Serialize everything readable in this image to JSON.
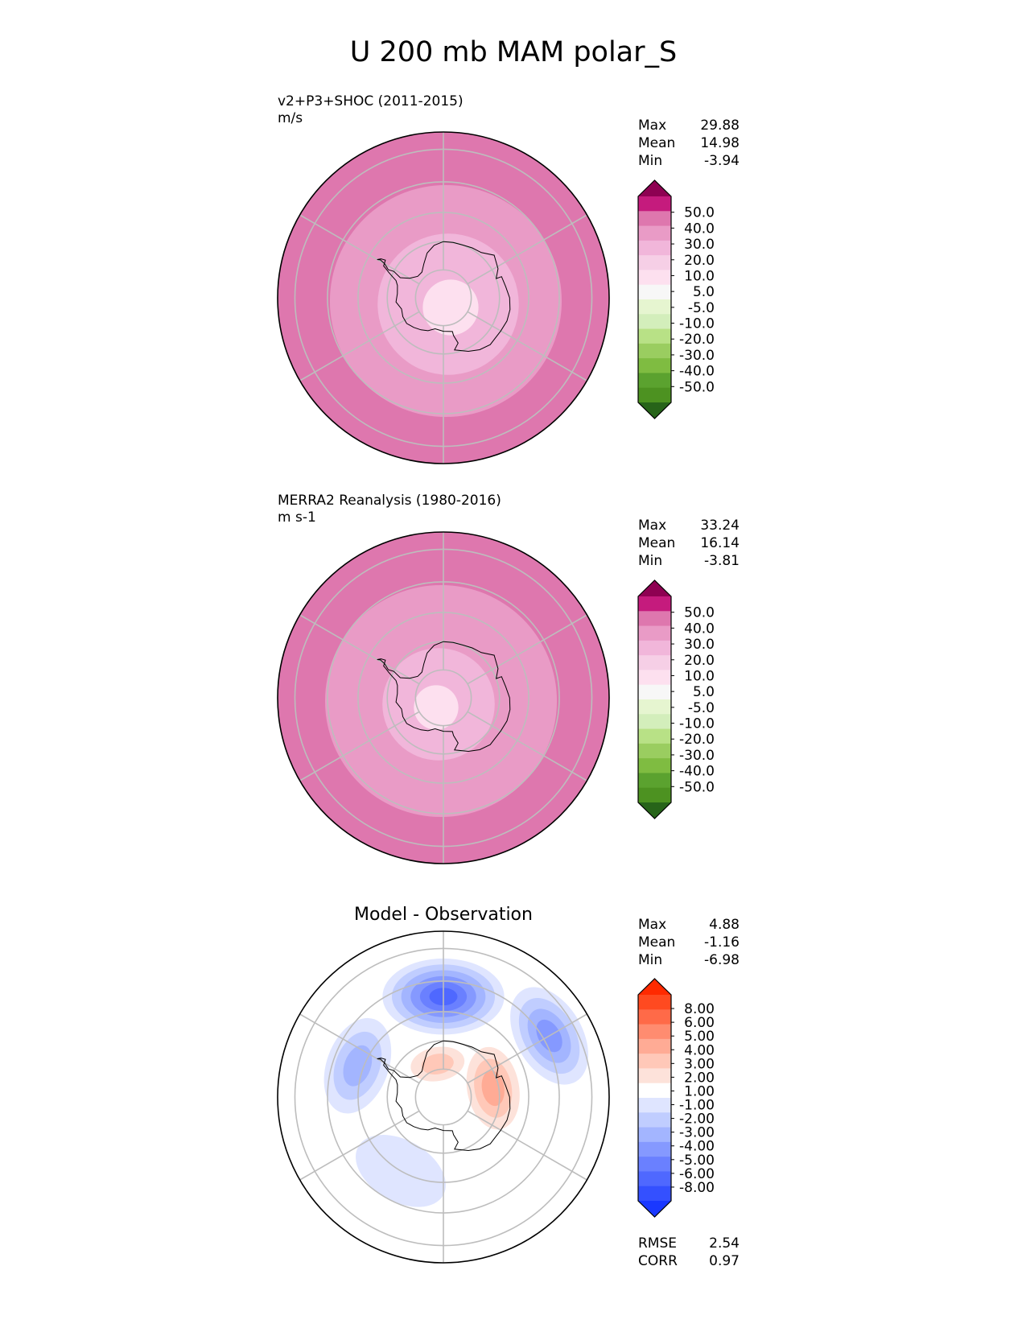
{
  "figure_title": "U 200 mb MAM polar_S",
  "colors": {
    "test_ref_cmap": [
      "#8e0152",
      "#c51b7d",
      "#de77ae",
      "#e99bc6",
      "#f1b6da",
      "#f6cfe6",
      "#fde0ef",
      "#f7f7f7",
      "#e6f5d0",
      "#d3eebb",
      "#b8e186",
      "#9acd60",
      "#7fbc41",
      "#5ba22f",
      "#4d9221",
      "#276419"
    ],
    "diff_cmap": [
      "#ff2a00",
      "#ff4a20",
      "#ff6a48",
      "#ff8c70",
      "#ffab95",
      "#ffc8b8",
      "#fde2da",
      "#ffffff",
      "#dfe5ff",
      "#c0cdff",
      "#a3b5ff",
      "#8599ff",
      "#6a80ff",
      "#4f68ff",
      "#3450ff",
      "#1a38ff"
    ],
    "grid": "#bdbdbd",
    "coast": "#000000"
  },
  "chart_data": [
    {
      "type": "contourf_polar",
      "panel": "test",
      "title": "v2+P3+SHOC (2011-2015)",
      "units": "m/s",
      "stats": [
        {
          "label": "Max",
          "value": "29.88"
        },
        {
          "label": "Mean",
          "value": "14.98"
        },
        {
          "label": "Min",
          "value": "-3.94"
        }
      ],
      "levels": [
        "50.0",
        "40.0",
        "30.0",
        "20.0",
        "10.0",
        "5.0",
        "-5.0",
        "-10.0",
        "-20.0",
        "-30.0",
        "-40.0",
        "-50.0"
      ],
      "field_rings": [
        {
          "band": "20-30",
          "lat_from": -50,
          "lat_to": -40,
          "color_index": 3
        },
        {
          "band": "10-20",
          "lat_from": -65,
          "lat_to": -50,
          "color_index": 4
        },
        {
          "band": "5-10",
          "lat_from": -80,
          "lat_to": -65,
          "color_index": 6
        },
        {
          "band": "-5-5",
          "lat_from": -90,
          "lat_to": -80,
          "color_index": 7
        }
      ]
    },
    {
      "type": "contourf_polar",
      "panel": "reference",
      "title": "MERRA2 Reanalysis (1980-2016)",
      "units": "m s-1",
      "stats": [
        {
          "label": "Max",
          "value": "33.24"
        },
        {
          "label": "Mean",
          "value": "16.14"
        },
        {
          "label": "Min",
          "value": "-3.81"
        }
      ],
      "levels": [
        "50.0",
        "40.0",
        "30.0",
        "20.0",
        "10.0",
        "5.0",
        "-5.0",
        "-10.0",
        "-20.0",
        "-30.0",
        "-40.0",
        "-50.0"
      ],
      "field_rings": [
        {
          "band": "20-30",
          "lat_from": -50,
          "lat_to": -42,
          "color_index": 3
        },
        {
          "band": "10-20",
          "lat_from": -70,
          "lat_to": -50,
          "color_index": 4
        },
        {
          "band": "5-10",
          "lat_from": -82,
          "lat_to": -70,
          "color_index": 6
        },
        {
          "band": "-5-5",
          "lat_from": -90,
          "lat_to": -82,
          "color_index": 7
        }
      ]
    },
    {
      "type": "contourf_polar",
      "panel": "difference",
      "title": "Model - Observation",
      "stats": [
        {
          "label": "Max",
          "value": "4.88"
        },
        {
          "label": "Mean",
          "value": "-1.16"
        },
        {
          "label": "Min",
          "value": "-6.98"
        }
      ],
      "metrics": [
        {
          "label": "RMSE",
          "value": "2.54"
        },
        {
          "label": "CORR",
          "value": "0.97"
        }
      ],
      "levels": [
        "8.00",
        "6.00",
        "5.00",
        "4.00",
        "3.00",
        "2.00",
        "1.00",
        "-1.00",
        "-2.00",
        "-3.00",
        "-4.00",
        "-5.00",
        "-6.00",
        "-8.00"
      ],
      "blobs": [
        {
          "lon": 60,
          "lat": -48,
          "spread_deg": 10,
          "value": -4
        },
        {
          "lon": 0,
          "lat": -55,
          "spread_deg": 12,
          "value": -6
        },
        {
          "lon": -70,
          "lat": -58,
          "spread_deg": 10,
          "value": -3
        },
        {
          "lon": 80,
          "lat": -72,
          "spread_deg": 9,
          "value": 3
        },
        {
          "lon": -150,
          "lat": -60,
          "spread_deg": 10,
          "value": -1
        },
        {
          "lon": -10,
          "lat": -78,
          "spread_deg": 6,
          "value": 2
        }
      ]
    }
  ],
  "map": {
    "projection": "south_polar_stereographic",
    "lat_limit": -35,
    "parallels": [
      -40,
      -50,
      -60,
      -70,
      -80
    ],
    "meridians": [
      0,
      60,
      120,
      180,
      240,
      300
    ]
  }
}
